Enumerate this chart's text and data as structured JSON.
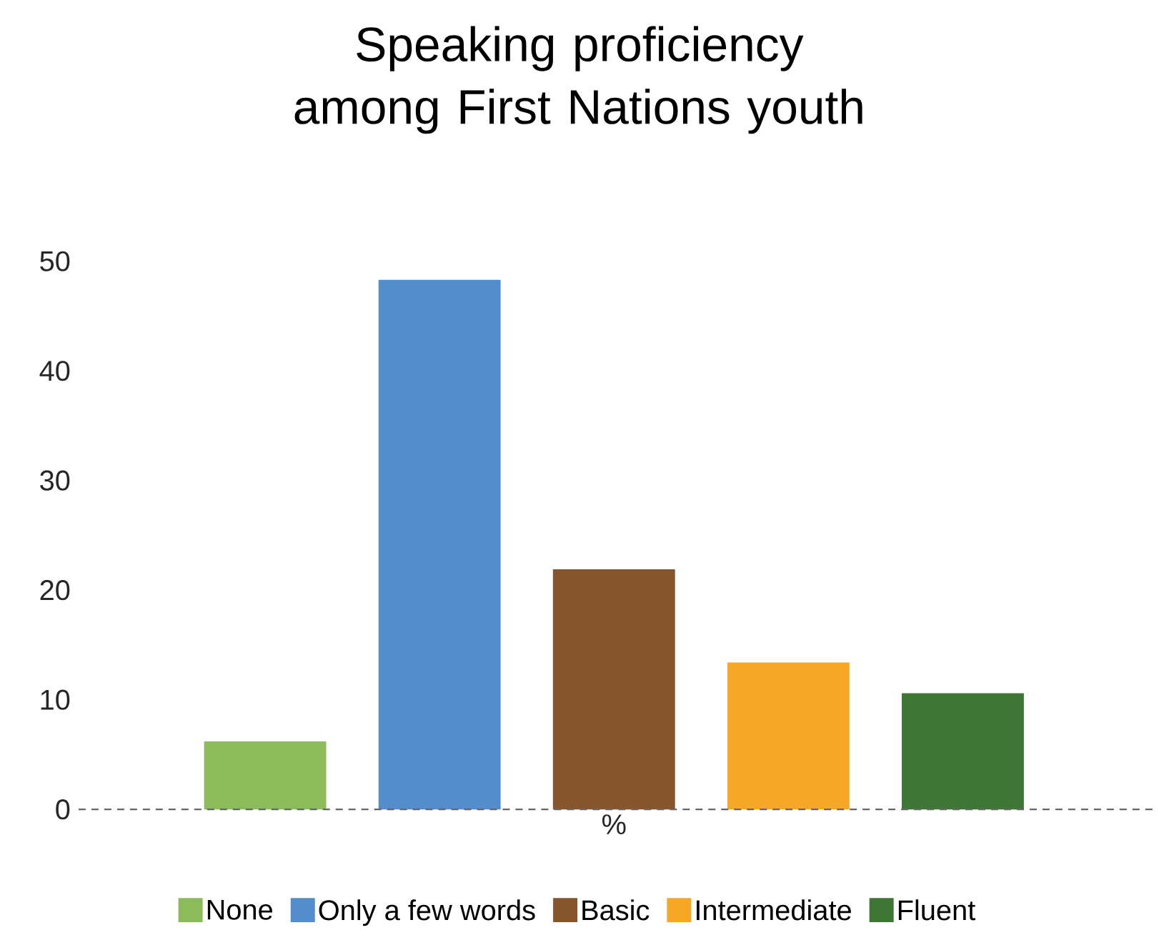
{
  "chart_data": {
    "type": "bar",
    "title": "Speaking proficiency among First Nations youth",
    "categories": [
      "%"
    ],
    "series": [
      {
        "name": "None",
        "color": "#8bbb5a",
        "values": [
          6.2
        ]
      },
      {
        "name": "Only a few words",
        "color": "#548dcb",
        "values": [
          48.3
        ]
      },
      {
        "name": "Basic",
        "color": "#87552c",
        "values": [
          21.9
        ]
      },
      {
        "name": "Intermediate",
        "color": "#f6a726",
        "values": [
          13.4
        ]
      },
      {
        "name": "Fluent",
        "color": "#3f7636",
        "values": [
          10.6
        ]
      }
    ],
    "ylim": [
      0,
      50
    ],
    "yticks": [
      0,
      10,
      20,
      30,
      40,
      50
    ],
    "ref_lines": [
      {
        "axis": "y",
        "value": 0,
        "color": "#666666",
        "line_style": "dashed"
      }
    ],
    "legend": "bottom"
  }
}
